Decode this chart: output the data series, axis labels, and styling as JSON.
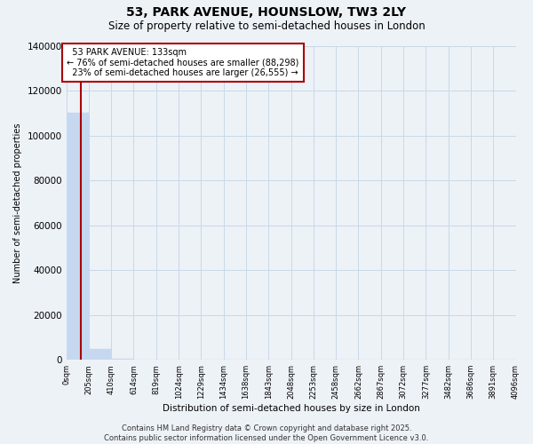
{
  "title": "53, PARK AVENUE, HOUNSLOW, TW3 2LY",
  "subtitle": "Size of property relative to semi-detached houses in London",
  "xlabel": "Distribution of semi-detached houses by size in London",
  "ylabel": "Number of semi-detached properties",
  "property_size": 133,
  "property_label": "53 PARK AVENUE: 133sqm",
  "pct_smaller": 76,
  "num_smaller": 88298,
  "pct_larger": 23,
  "num_larger": 26555,
  "bar_color": "#c5d8f0",
  "vline_color": "#aa0000",
  "annotation_box_color": "#aa0000",
  "grid_color": "#c8d8e8",
  "background_color": "#edf2f7",
  "bins": [
    0,
    205,
    410,
    614,
    819,
    1024,
    1229,
    1434,
    1638,
    1843,
    2048,
    2253,
    2458,
    2662,
    2867,
    3072,
    3277,
    3482,
    3686,
    3891,
    4096
  ],
  "counts": [
    110000,
    5000,
    400,
    80,
    40,
    15,
    10,
    8,
    5,
    4,
    3,
    2,
    2,
    1,
    1,
    1,
    1,
    1,
    0,
    0
  ],
  "tick_labels": [
    "0sqm",
    "205sqm",
    "410sqm",
    "614sqm",
    "819sqm",
    "1024sqm",
    "1229sqm",
    "1434sqm",
    "1638sqm",
    "1843sqm",
    "2048sqm",
    "2253sqm",
    "2458sqm",
    "2662sqm",
    "2867sqm",
    "3072sqm",
    "3277sqm",
    "3482sqm",
    "3686sqm",
    "3891sqm",
    "4096sqm"
  ],
  "footer": "Contains HM Land Registry data © Crown copyright and database right 2025.\nContains public sector information licensed under the Open Government Licence v3.0.",
  "ylim": [
    0,
    140000
  ],
  "yticks": [
    0,
    20000,
    40000,
    60000,
    80000,
    100000,
    120000,
    140000
  ]
}
